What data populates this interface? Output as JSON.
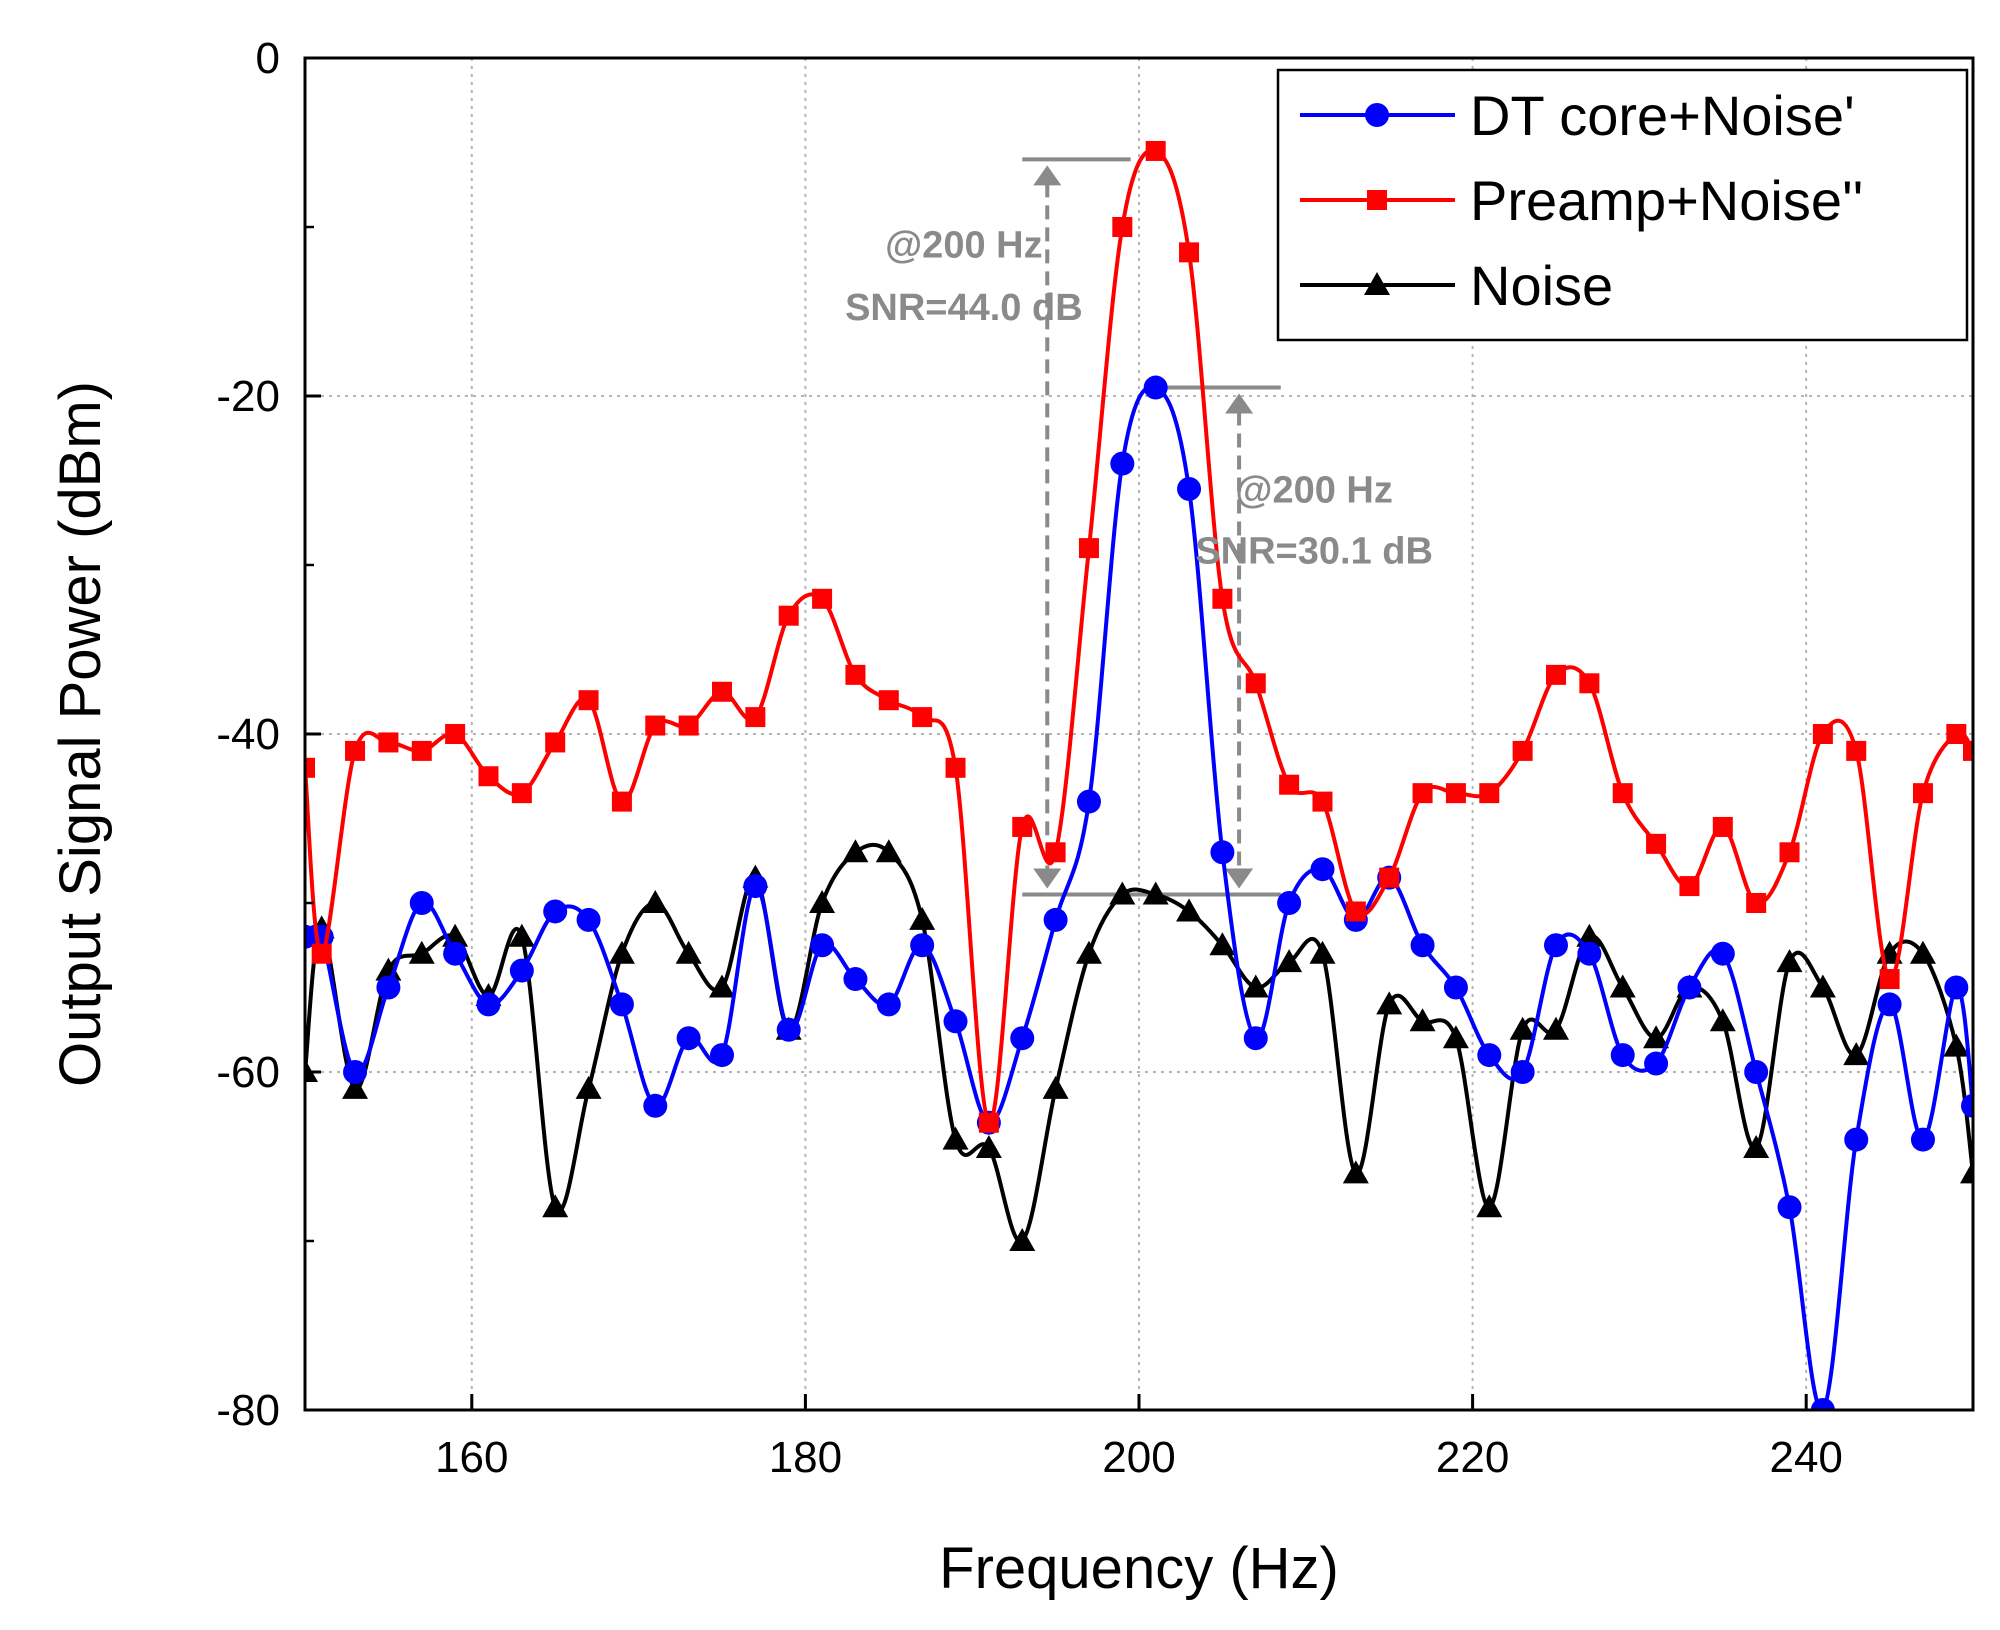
{
  "chart_data": {
    "type": "line",
    "xlabel": "Frequency (Hz)",
    "ylabel": "Output Signal Power (dBm)",
    "xlim": [
      150,
      250
    ],
    "ylim": [
      -80,
      0
    ],
    "xticks": [
      160,
      180,
      200,
      220,
      240
    ],
    "yticks": [
      0,
      -20,
      -40,
      -60,
      -80
    ],
    "grid": true,
    "legend_position": "top-right",
    "series": [
      {
        "name": "DT core+Noise'",
        "color": "#0000ff",
        "marker": "circle",
        "x": [
          150,
          151,
          153,
          155,
          157,
          159,
          161,
          163,
          165,
          167,
          169,
          171,
          173,
          175,
          177,
          179,
          181,
          183,
          185,
          187,
          189,
          191,
          193,
          195,
          197,
          199,
          201,
          203,
          205,
          207,
          209,
          211,
          213,
          215,
          217,
          219,
          221,
          223,
          225,
          227,
          229,
          231,
          233,
          235,
          237,
          239,
          241,
          243,
          245,
          247,
          249,
          250
        ],
        "y": [
          -52,
          -52,
          -60,
          -55,
          -50,
          -53,
          -56,
          -54,
          -50.5,
          -51,
          -56,
          -62,
          -58,
          -59,
          -49,
          -57.5,
          -52.5,
          -54.5,
          -56,
          -52.5,
          -57,
          -63,
          -58,
          -51,
          -44,
          -24,
          -19.5,
          -25.5,
          -47,
          -58,
          -50,
          -48,
          -51,
          -48.5,
          -52.5,
          -55,
          -59,
          -60,
          -52.5,
          -53,
          -59,
          -59.5,
          -55,
          -53,
          -60,
          -68,
          -80,
          -64,
          -56,
          -64,
          -55,
          -62
        ]
      },
      {
        "name": "Preamp+Noise''",
        "color": "#ff0000",
        "marker": "square",
        "x": [
          150,
          151,
          153,
          155,
          157,
          159,
          161,
          163,
          165,
          167,
          169,
          171,
          173,
          175,
          177,
          179,
          181,
          183,
          185,
          187,
          189,
          191,
          193,
          195,
          197,
          199,
          201,
          203,
          205,
          207,
          209,
          211,
          213,
          215,
          217,
          219,
          221,
          223,
          225,
          227,
          229,
          231,
          233,
          235,
          237,
          239,
          241,
          243,
          245,
          247,
          249,
          250
        ],
        "y": [
          -42,
          -53,
          -41,
          -40.5,
          -41,
          -40,
          -42.5,
          -43.5,
          -40.5,
          -38,
          -44,
          -39.5,
          -39.5,
          -37.5,
          -39,
          -33,
          -32,
          -36.5,
          -38,
          -39,
          -42,
          -63,
          -45.5,
          -47,
          -29,
          -10,
          -5.5,
          -11.5,
          -32,
          -37,
          -43,
          -44,
          -50.5,
          -48.5,
          -43.5,
          -43.5,
          -43.5,
          -41,
          -36.5,
          -37,
          -43.5,
          -46.5,
          -49,
          -45.5,
          -50,
          -47,
          -40,
          -41,
          -54.5,
          -43.5,
          -40,
          -41
        ]
      },
      {
        "name": "Noise",
        "color": "#000000",
        "marker": "triangle",
        "x": [
          150,
          151,
          153,
          155,
          157,
          159,
          161,
          163,
          165,
          167,
          169,
          171,
          173,
          175,
          177,
          179,
          181,
          183,
          185,
          187,
          189,
          191,
          193,
          195,
          197,
          199,
          201,
          203,
          205,
          207,
          209,
          211,
          213,
          215,
          217,
          219,
          221,
          223,
          225,
          227,
          229,
          231,
          233,
          235,
          237,
          239,
          241,
          243,
          245,
          247,
          249,
          250
        ],
        "y": [
          -60,
          -51.5,
          -61,
          -54,
          -53,
          -52,
          -55.5,
          -52,
          -68,
          -61,
          -53,
          -50,
          -53,
          -55,
          -48.5,
          -57.5,
          -50,
          -47,
          -47,
          -51,
          -64,
          -64.5,
          -70,
          -61,
          -53,
          -49.5,
          -49.5,
          -50.5,
          -52.5,
          -55,
          -53.5,
          -53,
          -66,
          -56,
          -57,
          -58,
          -68,
          -57.5,
          -57.5,
          -52,
          -55,
          -58,
          -55,
          -57,
          -64.5,
          -53.5,
          -55,
          -59,
          -53,
          -53,
          -58.5,
          -66
        ]
      }
    ],
    "annotations": [
      {
        "line1": "@200 Hz",
        "line2": "SNR=44.0 dB",
        "arrow_x": 194.5,
        "from_y": -6,
        "to_y": -49.5
      },
      {
        "line1": "@200 Hz",
        "line2": "SNR=30.1 dB",
        "arrow_x": 206,
        "from_y": -19.5,
        "to_y": -49.5
      }
    ]
  }
}
